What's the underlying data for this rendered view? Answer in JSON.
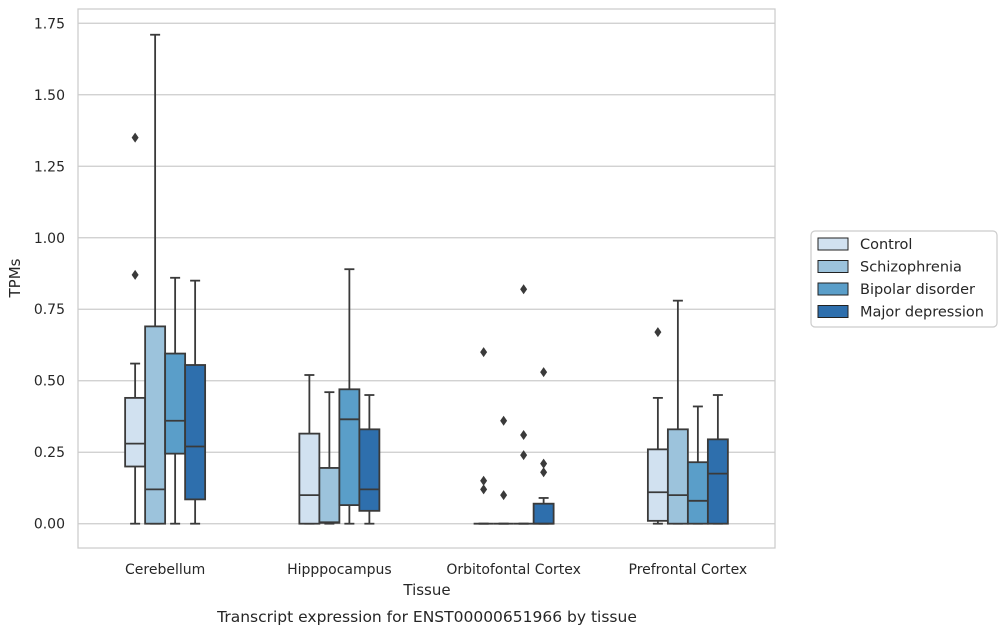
{
  "chart_data": {
    "type": "boxplot",
    "title": "Transcript expression for ENST00000651966 by tissue",
    "xlabel": "Tissue",
    "ylabel": "TPMs",
    "ylim": [
      -0.085,
      1.8
    ],
    "yticks": [
      "0.00",
      "0.25",
      "0.50",
      "0.75",
      "1.00",
      "1.25",
      "1.50",
      "1.75"
    ],
    "ytick_values": [
      0,
      0.25,
      0.5,
      0.75,
      1.0,
      1.25,
      1.5,
      1.75
    ],
    "grid": "horizontal",
    "legend_position": "right",
    "categories": [
      "Cerebellum",
      "Hipppocampus",
      "Orbitofontal Cortex",
      "Prefrontal Cortex"
    ],
    "series": [
      {
        "name": "Control",
        "color": "#d1e1f0",
        "boxes": [
          {
            "whislo": 0.0,
            "q1": 0.2,
            "med": 0.28,
            "q3": 0.44,
            "whishi": 0.56,
            "fliers": [
              0.87,
              1.35
            ]
          },
          {
            "whislo": 0.0,
            "q1": 0.0,
            "med": 0.1,
            "q3": 0.315,
            "whishi": 0.52,
            "fliers": []
          },
          {
            "whislo": 0.0,
            "q1": 0.0,
            "med": 0.0,
            "q3": 0.0,
            "whishi": 0.0,
            "fliers": [
              0.12,
              0.15,
              0.6
            ]
          },
          {
            "whislo": 0.0,
            "q1": 0.01,
            "med": 0.11,
            "q3": 0.26,
            "whishi": 0.44,
            "fliers": [
              0.67
            ]
          }
        ]
      },
      {
        "name": "Schizophrenia",
        "color": "#9cc3dc",
        "boxes": [
          {
            "whislo": 0.0,
            "q1": 0.0,
            "med": 0.12,
            "q3": 0.69,
            "whishi": 1.71,
            "fliers": []
          },
          {
            "whislo": 0.0,
            "q1": 0.003,
            "med": 0.005,
            "q3": 0.195,
            "whishi": 0.46,
            "fliers": []
          },
          {
            "whislo": 0.0,
            "q1": 0.0,
            "med": 0.0,
            "q3": 0.0,
            "whishi": 0.0,
            "fliers": [
              0.1,
              0.36
            ]
          },
          {
            "whislo": 0.0,
            "q1": 0.0,
            "med": 0.1,
            "q3": 0.33,
            "whishi": 0.78,
            "fliers": []
          }
        ]
      },
      {
        "name": "Bipolar disorder",
        "color": "#5a9ec9",
        "boxes": [
          {
            "whislo": 0.0,
            "q1": 0.245,
            "med": 0.36,
            "q3": 0.595,
            "whishi": 0.86,
            "fliers": []
          },
          {
            "whislo": 0.0,
            "q1": 0.065,
            "med": 0.365,
            "q3": 0.47,
            "whishi": 0.89,
            "fliers": []
          },
          {
            "whislo": 0.0,
            "q1": 0.0,
            "med": 0.0,
            "q3": 0.0,
            "whishi": 0.0,
            "fliers": [
              0.24,
              0.31,
              0.82
            ]
          },
          {
            "whislo": 0.0,
            "q1": 0.0,
            "med": 0.08,
            "q3": 0.215,
            "whishi": 0.41,
            "fliers": []
          }
        ]
      },
      {
        "name": "Major depression",
        "color": "#2e6fad",
        "boxes": [
          {
            "whislo": 0.0,
            "q1": 0.085,
            "med": 0.27,
            "q3": 0.555,
            "whishi": 0.85,
            "fliers": []
          },
          {
            "whislo": 0.0,
            "q1": 0.045,
            "med": 0.12,
            "q3": 0.33,
            "whishi": 0.45,
            "fliers": []
          },
          {
            "whislo": 0.0,
            "q1": 0.0,
            "med": 0.0,
            "q3": 0.07,
            "whishi": 0.09,
            "fliers": [
              0.18,
              0.21,
              0.53
            ]
          },
          {
            "whislo": 0.0,
            "q1": 0.0,
            "med": 0.175,
            "q3": 0.295,
            "whishi": 0.45,
            "fliers": []
          }
        ]
      }
    ]
  }
}
